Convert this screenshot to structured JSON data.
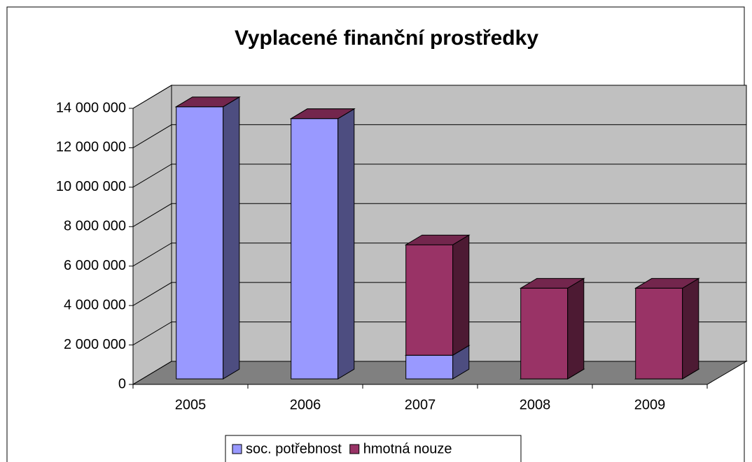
{
  "chart_data": {
    "type": "bar3d_stacked",
    "title": "Vyplacené finanční prostředky",
    "categories": [
      "2005",
      "2006",
      "2007",
      "2008",
      "2009"
    ],
    "series": [
      {
        "name": "soc. potřebnost",
        "color": "#9999ff",
        "values": [
          13800000,
          13200000,
          1200000,
          0,
          0
        ]
      },
      {
        "name": "hmotná nouze",
        "color": "#993366",
        "values": [
          0,
          0,
          5600000,
          4600000,
          4600000
        ]
      }
    ],
    "ylim": [
      0,
      14000000
    ],
    "yticks": [
      0,
      {
        "value": 2000000,
        "label": "2 000 000"
      },
      {
        "value": 4000000,
        "label": "4 000 000"
      },
      {
        "value": 6000000,
        "label": "6 000 000"
      },
      {
        "value": 8000000,
        "label": "8 000 000"
      },
      {
        "value": 10000000,
        "label": "10 000 000"
      },
      {
        "value": 12000000,
        "label": "12 000 000"
      },
      {
        "value": 14000000,
        "label": "14 000 000"
      }
    ],
    "grid": true,
    "legend": "bottom"
  }
}
